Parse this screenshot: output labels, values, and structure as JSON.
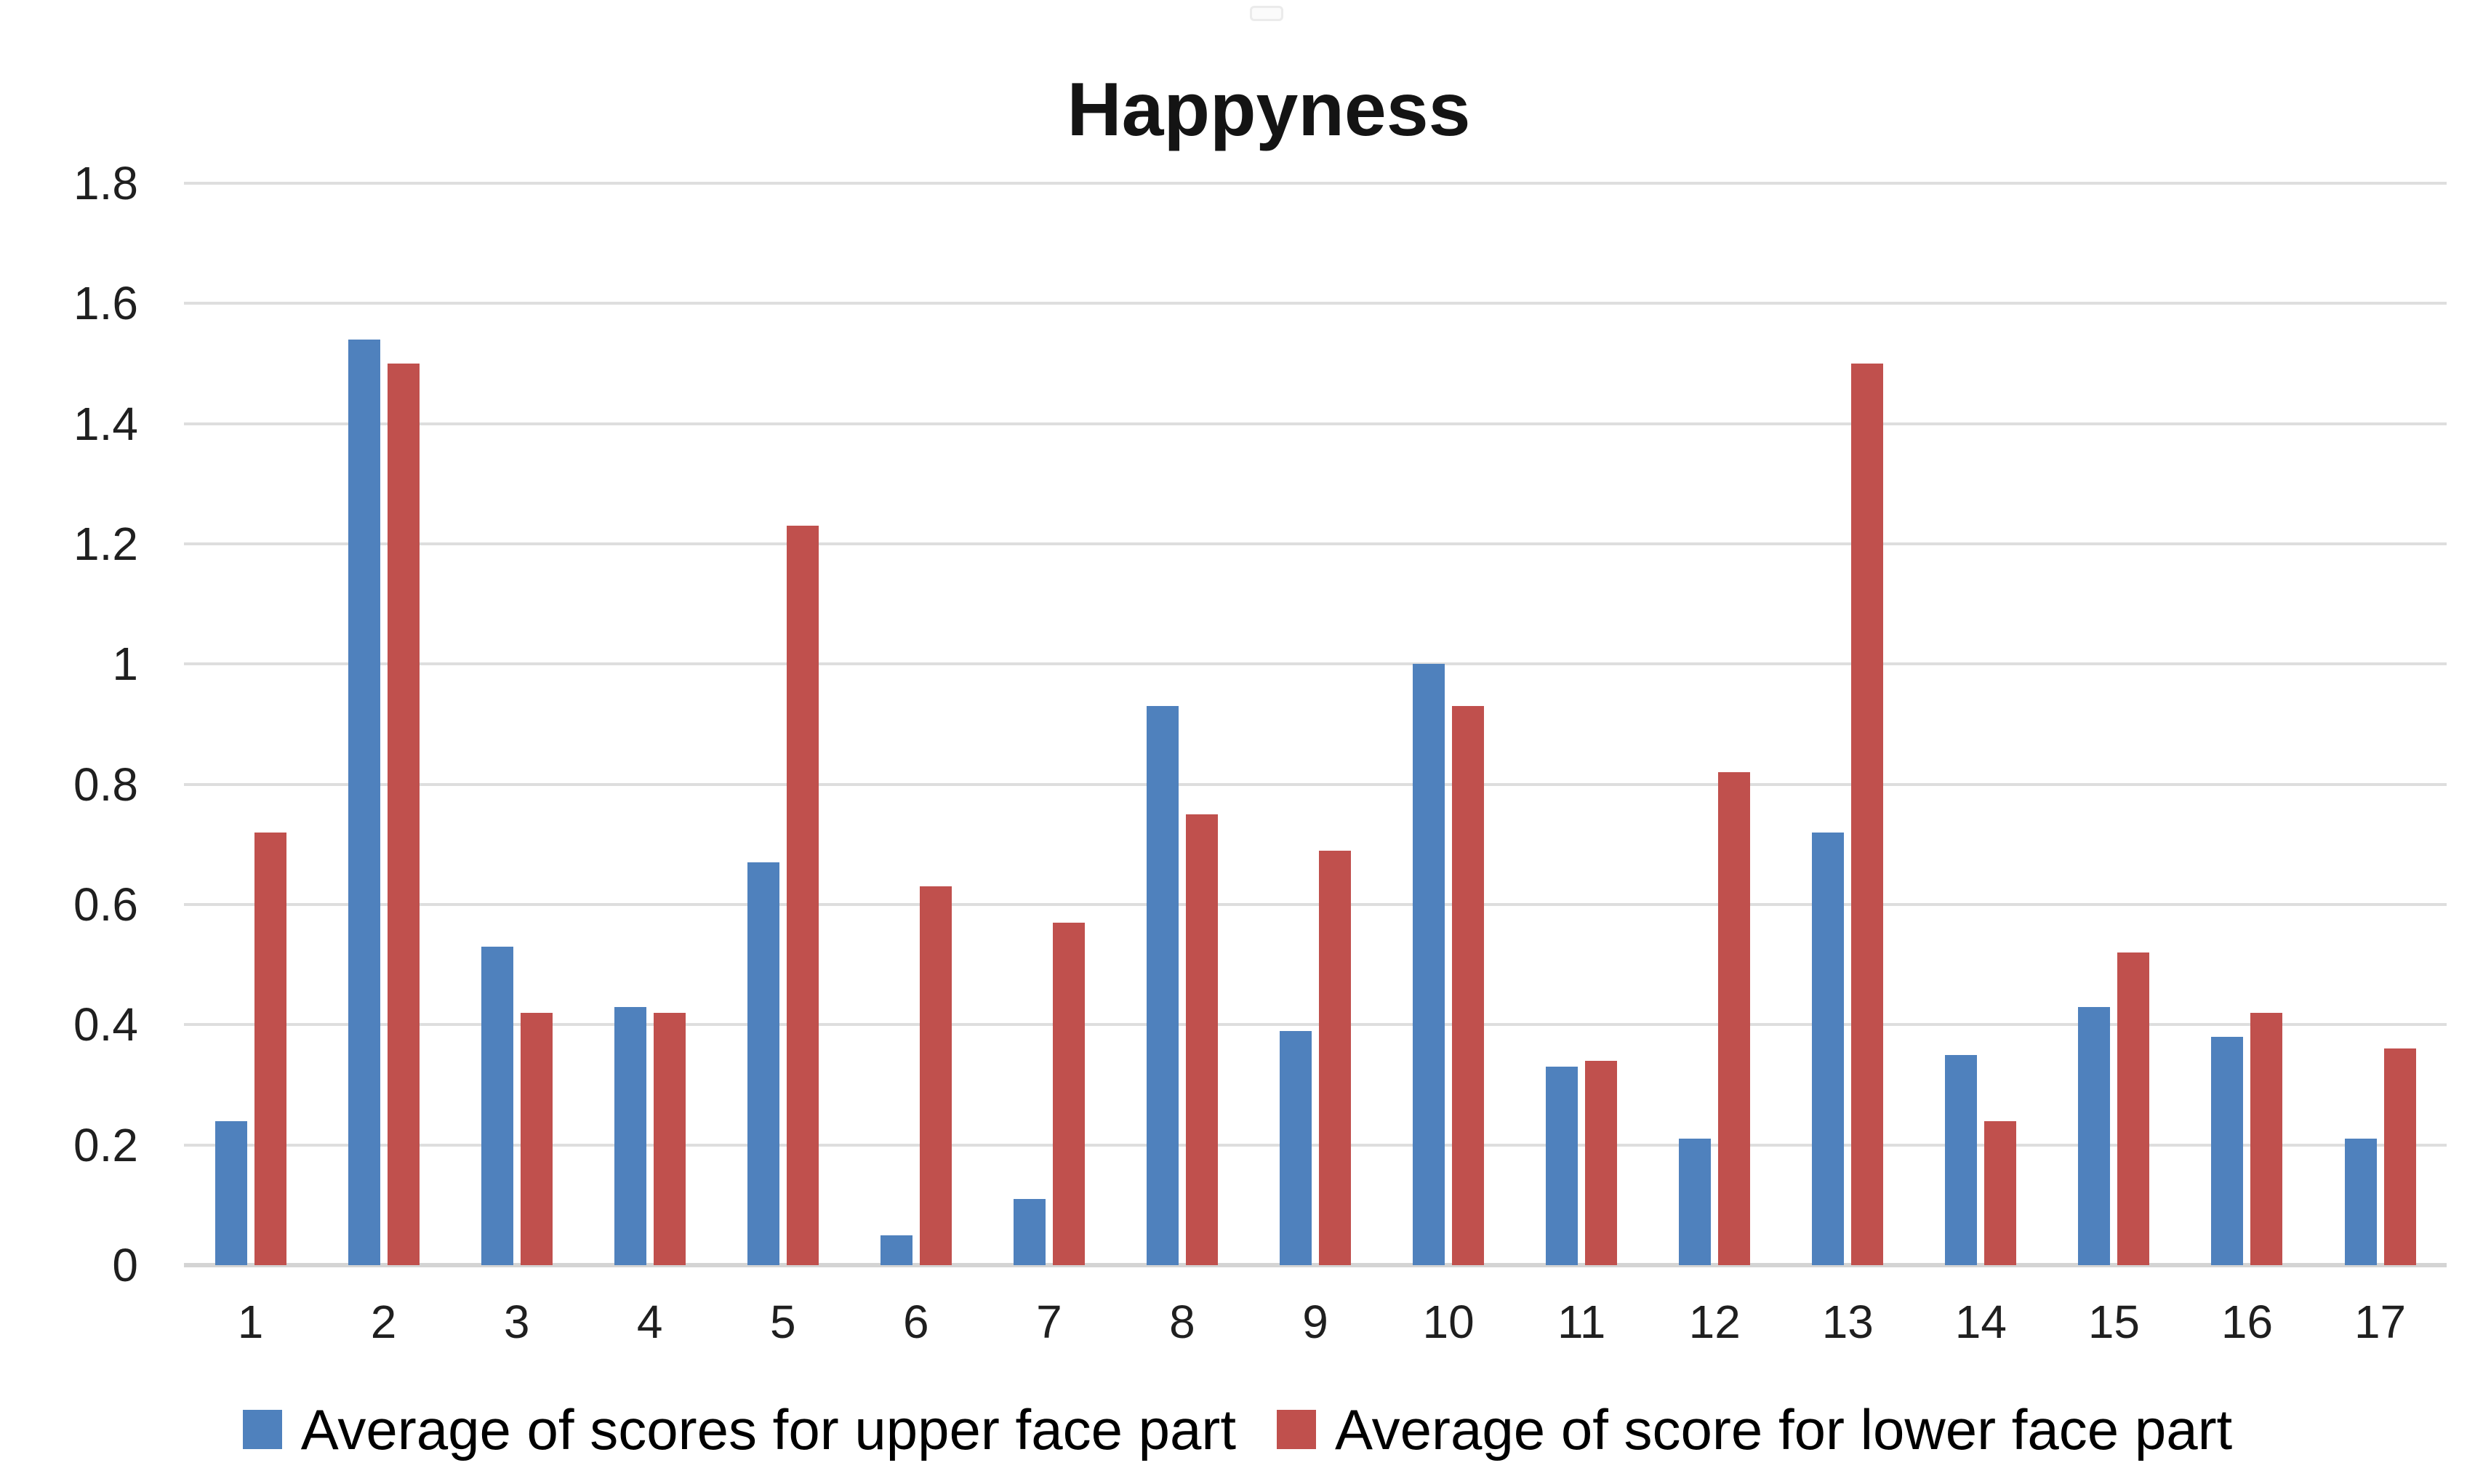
{
  "title": "Happyness",
  "chart_data": {
    "type": "bar",
    "title": "Happyness",
    "categories": [
      "1",
      "2",
      "3",
      "4",
      "5",
      "6",
      "7",
      "8",
      "9",
      "10",
      "11",
      "12",
      "13",
      "14",
      "15",
      "16",
      "17"
    ],
    "series": [
      {
        "name": "Average of scores for upper face part",
        "color": "#4F81BD",
        "values": [
          0.24,
          1.54,
          0.53,
          0.43,
          0.67,
          0.05,
          0.11,
          0.93,
          0.39,
          1.0,
          0.33,
          0.21,
          0.72,
          0.35,
          0.43,
          0.38,
          0.21
        ]
      },
      {
        "name": "Average of score for lower face part",
        "color": "#C0504D",
        "values": [
          0.72,
          1.5,
          0.42,
          0.42,
          1.23,
          0.63,
          0.57,
          0.75,
          0.69,
          0.93,
          0.34,
          0.82,
          1.5,
          0.24,
          0.52,
          0.42,
          0.36
        ]
      }
    ],
    "xlabel": "",
    "ylabel": "",
    "ylim": [
      0,
      1.8
    ],
    "yticks": [
      0,
      0.2,
      0.4,
      0.6,
      0.8,
      1,
      1.2,
      1.4,
      1.6,
      1.8
    ],
    "ytick_labels": [
      "0",
      "0.2",
      "0.4",
      "0.6",
      "0.8",
      "1",
      "1.2",
      "1.4",
      "1.6",
      "1.8"
    ],
    "grid": true,
    "legend_position": "bottom"
  },
  "colors": {
    "series_upper": "#4F81BD",
    "series_lower": "#C0504D",
    "gridline": "#DEDEDE",
    "axis_line": "#D4D4D4",
    "text": "#1F1F1F"
  }
}
